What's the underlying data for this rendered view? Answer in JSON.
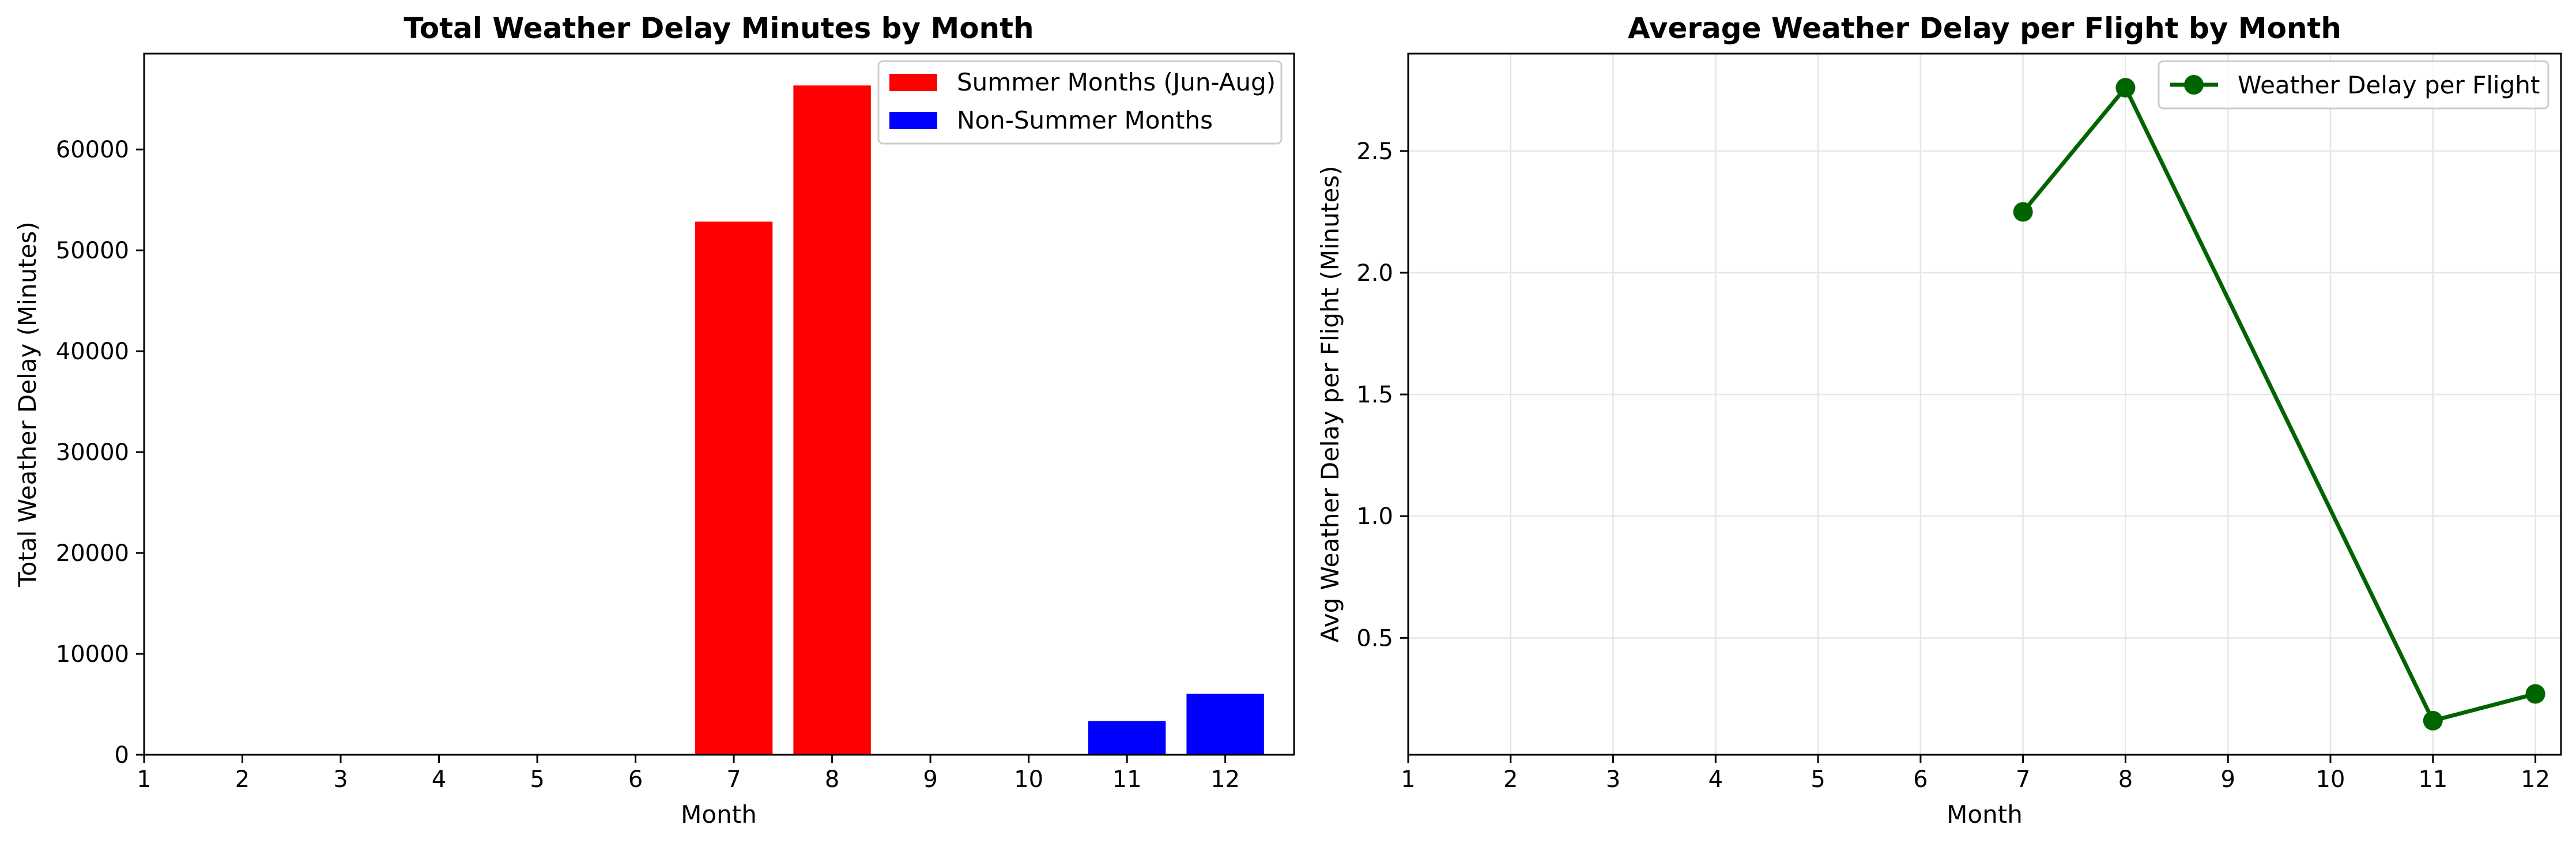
{
  "chart_data": [
    {
      "type": "bar",
      "title": "Total Weather Delay Minutes by Month",
      "xlabel": "Month",
      "ylabel": "Total Weather Delay (Minutes)",
      "categories": [
        "1",
        "2",
        "3",
        "4",
        "5",
        "6",
        "7",
        "8",
        "9",
        "10",
        "11",
        "12"
      ],
      "series": [
        {
          "name": "Summer Months (Jun-Aug)",
          "color": "#ff0000",
          "x": [
            7,
            8
          ],
          "values": [
            52900,
            66400
          ]
        },
        {
          "name": "Non-Summer Months",
          "color": "#0000ff",
          "x": [
            11,
            12
          ],
          "values": [
            3400,
            6100
          ]
        }
      ],
      "xlim": [
        1,
        12.7
      ],
      "ylim": [
        0,
        69500
      ],
      "yticks": [
        0,
        10000,
        20000,
        30000,
        40000,
        50000,
        60000
      ],
      "grid": false,
      "legend": "top-right"
    },
    {
      "type": "line",
      "title": "Average Weather Delay per Flight by Month",
      "xlabel": "Month",
      "ylabel": "Avg Weather Delay per Flight (Minutes)",
      "x_ticks": [
        1,
        2,
        3,
        4,
        5,
        6,
        7,
        8,
        9,
        10,
        11,
        12
      ],
      "series": [
        {
          "name": "Weather Delay per Flight",
          "color": "#006400",
          "marker": "circle",
          "x": [
            7,
            8,
            11,
            12
          ],
          "y": [
            2.25,
            2.76,
            0.16,
            0.27
          ]
        }
      ],
      "xlim": [
        1,
        12.25
      ],
      "ylim": [
        0.02,
        2.9
      ],
      "yticks": [
        0.5,
        1.0,
        1.5,
        2.0,
        2.5
      ],
      "ytick_labels": [
        "0.5",
        "1.0",
        "1.5",
        "2.0",
        "2.5"
      ],
      "grid": true,
      "legend": "top-right"
    }
  ]
}
